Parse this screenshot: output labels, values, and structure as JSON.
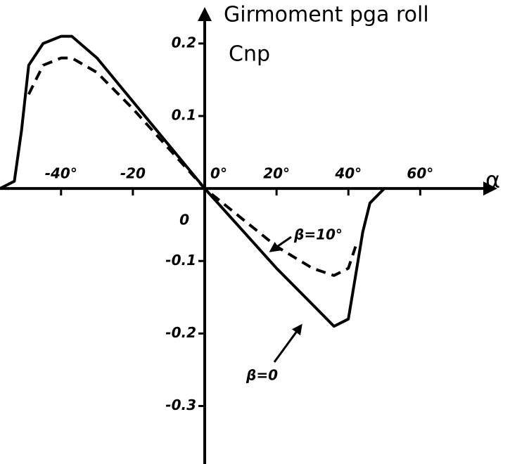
{
  "chart_data": {
    "type": "line",
    "title": "Girmoment pga roll",
    "y_label": "Cnp",
    "x_label": "α",
    "annotations": [
      "β=10°",
      "β=0"
    ],
    "x": [
      -57,
      -53,
      -51,
      -49,
      -45,
      -40,
      -37,
      -30,
      -20,
      -10,
      0,
      10,
      20,
      30,
      36,
      40,
      42,
      44,
      46,
      50
    ],
    "series": [
      {
        "name": "β=0",
        "color": "#000000",
        "dash": false,
        "values": [
          0,
          0.01,
          0.08,
          0.17,
          0.2,
          0.21,
          0.21,
          0.18,
          0.12,
          0.06,
          0,
          -0.055,
          -0.11,
          -0.16,
          -0.19,
          -0.18,
          -0.12,
          -0.06,
          -0.02,
          0
        ]
      },
      {
        "name": "β=10°",
        "color": "#000000",
        "dash": true,
        "values": [
          null,
          null,
          null,
          0.13,
          0.17,
          0.18,
          0.18,
          0.16,
          0.11,
          0.055,
          0,
          -0.04,
          -0.08,
          -0.11,
          -0.12,
          -0.11,
          -0.08,
          null,
          null,
          null
        ]
      }
    ],
    "xlim": [
      -57,
      85
    ],
    "ylim": [
      -0.38,
      0.26
    ],
    "xticks": [
      {
        "value": -40,
        "label": "-40°"
      },
      {
        "value": -20,
        "label": "-20"
      },
      {
        "value": 0,
        "label": "0°"
      },
      {
        "value": 20,
        "label": "20°"
      },
      {
        "value": 40,
        "label": "40°"
      },
      {
        "value": 60,
        "label": "60°"
      }
    ],
    "yticks": [
      0.2,
      0.1,
      0,
      -0.1,
      -0.2,
      -0.3
    ]
  }
}
